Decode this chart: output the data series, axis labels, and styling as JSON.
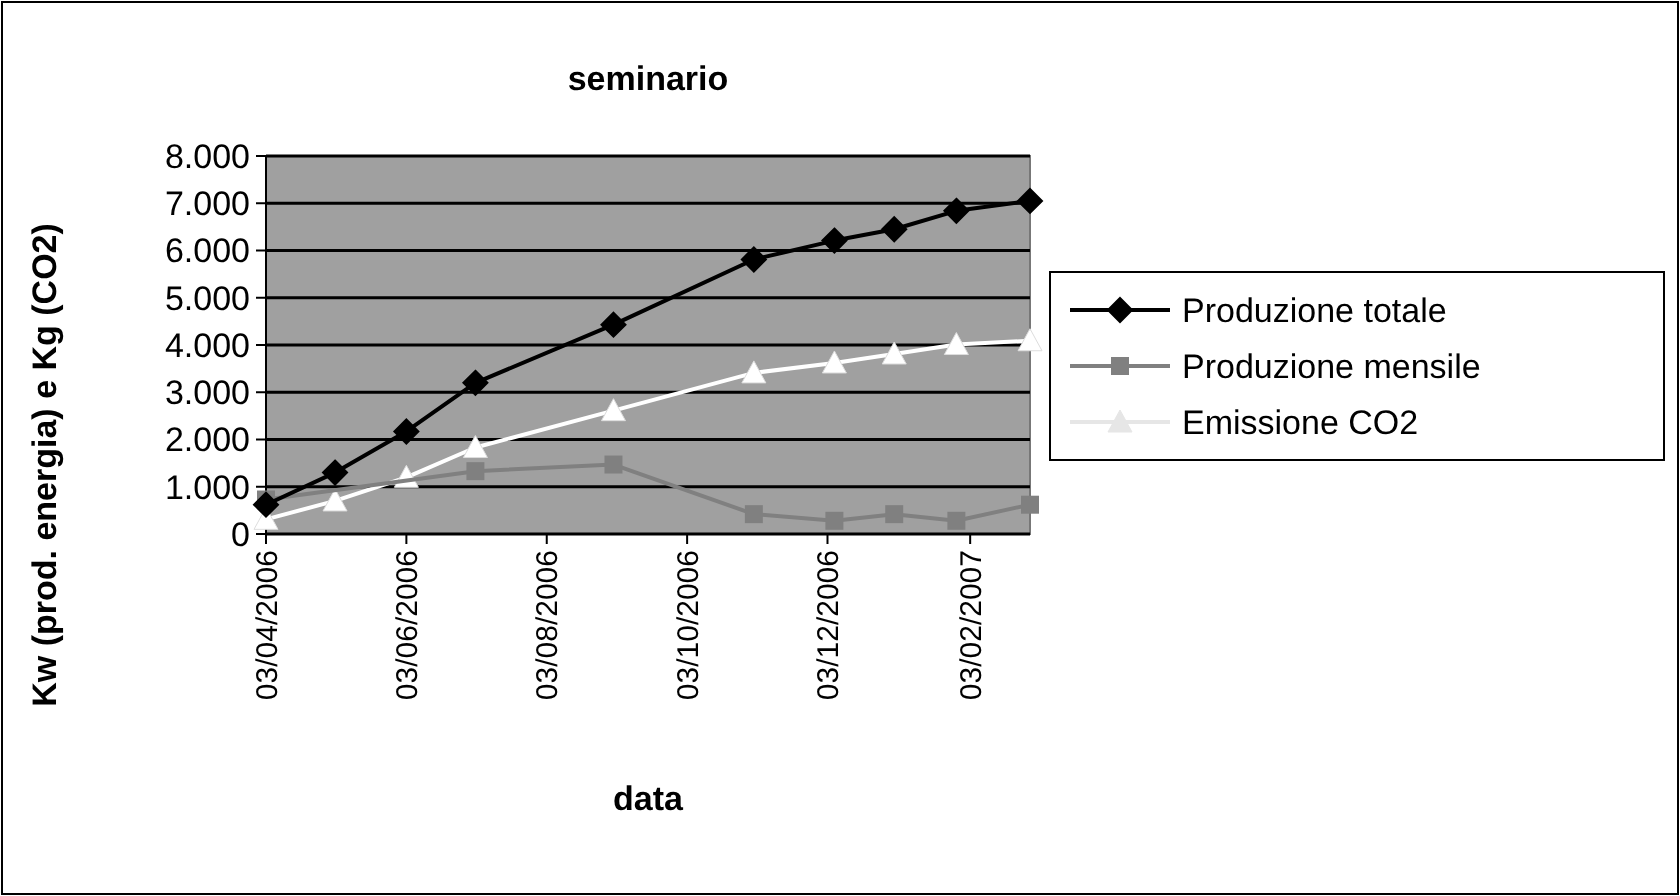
{
  "chart_data": {
    "type": "line",
    "title": "seminario",
    "xlabel": "data",
    "ylabel": "Kw (prod. energia) e Kg (CO2)",
    "x": [
      "2006-04-03",
      "2006-05-03",
      "2006-06-03",
      "2006-07-03",
      "2006-09-01",
      "2006-11-01",
      "2006-12-06",
      "2007-01-01",
      "2007-01-28",
      "2007-03-01"
    ],
    "series": [
      {
        "name": "Produzione totale",
        "color": "#000000",
        "marker": "diamond",
        "values": [
          620,
          1300,
          2170,
          3200,
          4430,
          5810,
          6210,
          6450,
          6840,
          7050
        ]
      },
      {
        "name": "Produzione mensile",
        "color": "#808080",
        "marker": "square",
        "values": [
          730,
          null,
          null,
          1330,
          1470,
          420,
          280,
          420,
          280,
          620
        ]
      },
      {
        "name": "Emissione CO2",
        "color": "#ffffff",
        "marker": "triangle",
        "values": [
          310,
          700,
          1200,
          1830,
          2610,
          3410,
          3620,
          3810,
          4010,
          4090
        ]
      }
    ],
    "xlim": [
      "2006-04-03",
      "2007-03-01"
    ],
    "xticks": [
      {
        "value": "2006-04-03",
        "label": "03/04/2006"
      },
      {
        "value": "2006-06-03",
        "label": "03/06/2006"
      },
      {
        "value": "2006-08-03",
        "label": "03/08/2006"
      },
      {
        "value": "2006-10-03",
        "label": "03/10/2006"
      },
      {
        "value": "2006-12-03",
        "label": "03/12/2006"
      },
      {
        "value": "2007-02-03",
        "label": "03/02/2007"
      }
    ],
    "ylim": [
      0,
      8000
    ],
    "yticks": [
      {
        "value": 0,
        "label": "0"
      },
      {
        "value": 1000,
        "label": "1.000"
      },
      {
        "value": 2000,
        "label": "2.000"
      },
      {
        "value": 3000,
        "label": "3.000"
      },
      {
        "value": 4000,
        "label": "4.000"
      },
      {
        "value": 5000,
        "label": "5.000"
      },
      {
        "value": 6000,
        "label": "6.000"
      },
      {
        "value": 7000,
        "label": "7.000"
      },
      {
        "value": 8000,
        "label": "8.000"
      }
    ],
    "grid": "y",
    "legend": "right",
    "line_style": "solid"
  }
}
